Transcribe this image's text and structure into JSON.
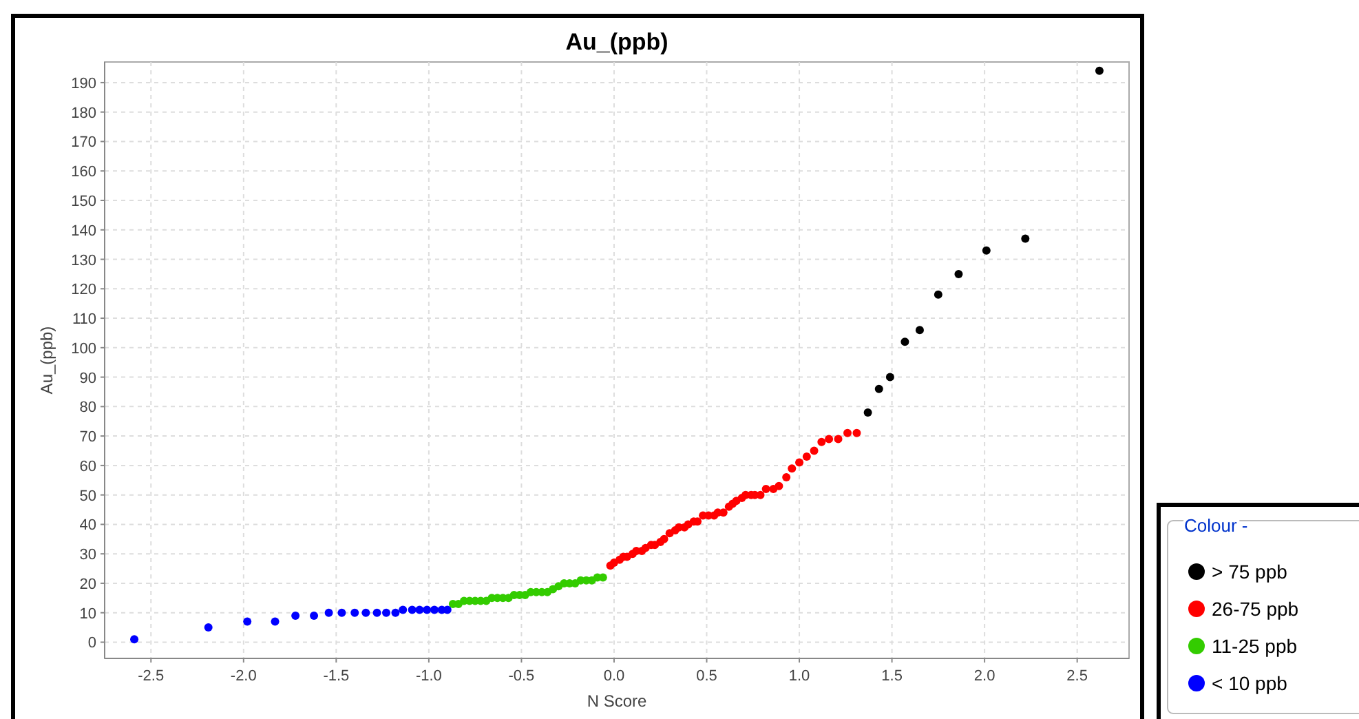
{
  "chart_data": {
    "type": "scatter",
    "title": "Au_(ppb)",
    "xlabel": "N Score",
    "ylabel": "Au_(ppb)",
    "legend_title": "Colour -",
    "legend": "bottom right",
    "grid": true,
    "marker": "circle",
    "xlim": [
      -2.75,
      2.78
    ],
    "ylim": [
      -5.5,
      197
    ],
    "xticks": [
      -2.5,
      {
        "value": -2,
        "label": "-2.0"
      },
      -1.5,
      {
        "value": -1,
        "label": "-1.0"
      },
      -0.5,
      {
        "value": 0,
        "label": "0.0"
      },
      0.5,
      {
        "value": 1,
        "label": "1.0"
      },
      1.5,
      {
        "value": 2,
        "label": "2.0"
      },
      2.5
    ],
    "yticks": [
      0,
      10,
      20,
      30,
      40,
      50,
      60,
      70,
      80,
      90,
      100,
      110,
      120,
      130,
      140,
      150,
      160,
      170,
      180,
      190
    ],
    "series": [
      {
        "name": "> 75 ppb",
        "color": "#000000",
        "x": [
          1.37,
          1.43,
          1.49,
          1.57,
          1.65,
          1.75,
          1.86,
          2.01,
          2.22,
          2.62
        ],
        "values": [
          78,
          86,
          90,
          102,
          106,
          118,
          125,
          133,
          137,
          194
        ]
      },
      {
        "name": "26-75 ppb",
        "color": "#ff0000",
        "x": [
          -0.02,
          0.0,
          0.03,
          0.05,
          0.07,
          0.1,
          0.12,
          0.15,
          0.17,
          0.2,
          0.22,
          0.25,
          0.27,
          0.3,
          0.33,
          0.35,
          0.38,
          0.4,
          0.43,
          0.45,
          0.48,
          0.51,
          0.54,
          0.56,
          0.59,
          0.62,
          0.64,
          0.66,
          0.69,
          0.71,
          0.74,
          0.76,
          0.79,
          0.82,
          0.86,
          0.89,
          0.93,
          0.96,
          1.0,
          1.04,
          1.08,
          1.12,
          1.16,
          1.21,
          1.26,
          1.31
        ],
        "values": [
          26,
          27,
          28,
          29,
          29,
          30,
          31,
          31,
          32,
          33,
          33,
          34,
          35,
          37,
          38,
          39,
          39,
          40,
          41,
          41,
          43,
          43,
          43,
          44,
          44,
          46,
          47,
          48,
          49,
          50,
          50,
          50,
          50,
          52,
          52,
          53,
          56,
          59,
          61,
          63,
          65,
          68,
          69,
          69,
          71,
          71
        ]
      },
      {
        "name": "11-25 ppb",
        "color": "#33cc00",
        "x": [
          -0.87,
          -0.84,
          -0.81,
          -0.78,
          -0.75,
          -0.72,
          -0.69,
          -0.66,
          -0.63,
          -0.6,
          -0.57,
          -0.54,
          -0.51,
          -0.48,
          -0.45,
          -0.42,
          -0.39,
          -0.36,
          -0.33,
          -0.3,
          -0.27,
          -0.24,
          -0.21,
          -0.18,
          -0.15,
          -0.12,
          -0.09,
          -0.06
        ],
        "values": [
          13,
          13,
          14,
          14,
          14,
          14,
          14,
          15,
          15,
          15,
          15,
          16,
          16,
          16,
          17,
          17,
          17,
          17,
          18,
          19,
          20,
          20,
          20,
          21,
          21,
          21,
          22,
          22
        ]
      },
      {
        "name": "< 10 ppb",
        "color": "#0000ff",
        "x": [
          -2.59,
          -2.19,
          -1.98,
          -1.83,
          -1.72,
          -1.62,
          -1.54,
          -1.47,
          -1.4,
          -1.34,
          -1.28,
          -1.23,
          -1.18,
          -1.14,
          -1.09,
          -1.05,
          -1.01,
          -0.97,
          -0.93,
          -0.9
        ],
        "values": [
          1,
          5,
          7,
          7,
          9,
          9,
          10,
          10,
          10,
          10,
          10,
          10,
          10,
          11,
          11,
          11,
          11,
          11,
          11,
          11
        ]
      }
    ]
  }
}
